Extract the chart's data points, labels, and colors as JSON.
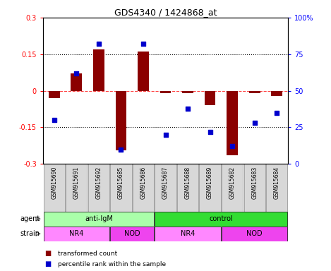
{
  "title": "GDS4340 / 1424868_at",
  "samples": [
    "GSM915690",
    "GSM915691",
    "GSM915692",
    "GSM915685",
    "GSM915686",
    "GSM915687",
    "GSM915688",
    "GSM915689",
    "GSM915682",
    "GSM915683",
    "GSM915684"
  ],
  "transformed_count": [
    -0.03,
    0.07,
    0.17,
    -0.245,
    0.16,
    -0.01,
    -0.01,
    -0.06,
    -0.265,
    -0.01,
    -0.02
  ],
  "percentile_rank": [
    30,
    62,
    82,
    10,
    82,
    20,
    38,
    22,
    12,
    28,
    35
  ],
  "ylim": [
    -0.3,
    0.3
  ],
  "yticks_left": [
    -0.3,
    -0.15,
    0,
    0.15,
    0.3
  ],
  "yticks_right_vals": [
    0,
    25,
    50,
    75,
    100
  ],
  "yticks_right_labels": [
    "0",
    "25",
    "50",
    "75",
    "100%"
  ],
  "bar_color": "#8B0000",
  "dot_color": "#0000CC",
  "zero_line_color": "#FF4444",
  "agent_groups": [
    {
      "label": "anti-IgM",
      "start": 0,
      "end": 5,
      "color": "#AAFFAA"
    },
    {
      "label": "control",
      "start": 5,
      "end": 11,
      "color": "#33DD33"
    }
  ],
  "strain_groups": [
    {
      "label": "NR4",
      "start": 0,
      "end": 3,
      "color": "#FF88FF"
    },
    {
      "label": "NOD",
      "start": 3,
      "end": 5,
      "color": "#EE44EE"
    },
    {
      "label": "NR4",
      "start": 5,
      "end": 8,
      "color": "#FF88FF"
    },
    {
      "label": "NOD",
      "start": 8,
      "end": 11,
      "color": "#EE44EE"
    }
  ],
  "legend_items": [
    {
      "label": "transformed count",
      "color": "#8B0000"
    },
    {
      "label": "percentile rank within the sample",
      "color": "#0000CC"
    }
  ],
  "bar_width": 0.5,
  "dot_size": 22
}
